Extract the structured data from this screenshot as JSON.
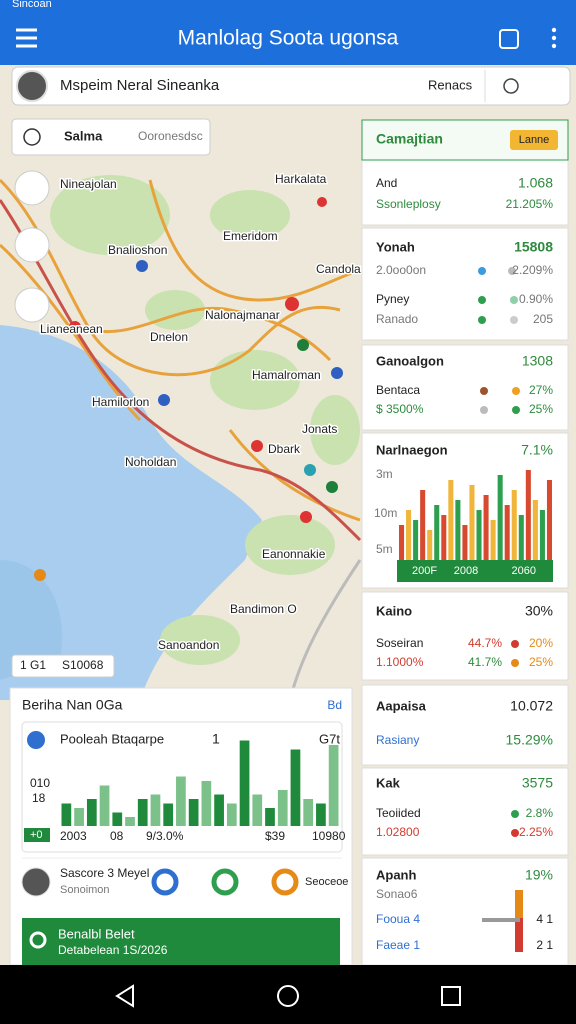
{
  "status_bar": {
    "time": "Sincoan"
  },
  "app_bar": {
    "title": "Manlolag Soota ugonsa"
  },
  "search": {
    "name": "Mspeim Neral Sineanka",
    "button": "Renacs"
  },
  "filter": {
    "label": "Salma",
    "option": "Ooronesdsc"
  },
  "map": {
    "labels": [
      "Nineajolan",
      "Harkalata",
      "Bnalioshon",
      "Emeridom",
      "Candolan",
      "Nalonajmanar",
      "Lianeanean",
      "Dnelon",
      "Hamalroman",
      "Hamilorlon",
      "Jonats",
      "Dbark",
      "Noholdan",
      "Eanonnakie",
      "Bandimon O",
      "Sanoandon"
    ],
    "scale": [
      "1 G1",
      "S10068"
    ]
  },
  "side_cards": [
    {
      "title": "Camajtian",
      "badge": "Lanne",
      "rows": [
        [
          "And",
          "1.068"
        ],
        [
          "Ssonleplosy",
          "21.205%"
        ]
      ]
    },
    {
      "rows": [
        [
          "Yonah",
          "15808"
        ],
        [
          "2.0oo0on",
          "2.209%"
        ],
        [
          "Pyney",
          "0.90%"
        ],
        [
          "Ranado",
          "205"
        ]
      ]
    },
    {
      "rows": [
        [
          "Ganoalgon",
          "1308"
        ],
        [
          "Bentaca",
          "27%"
        ],
        [
          "$ 3500%",
          "25%"
        ]
      ]
    },
    {
      "title": "Narlnaegon",
      "value": "7.1%",
      "y_labels": [
        "3m",
        "10m",
        "5m"
      ],
      "x_labels": [
        "200F",
        "2008",
        "2060"
      ],
      "colors": [
        "#d84a2f",
        "#f0b53a",
        "#2e9e4f"
      ],
      "ylim": [
        0,
        100
      ],
      "bars": [
        35,
        50,
        40,
        70,
        30,
        55,
        45,
        80,
        60,
        35,
        75,
        50,
        65,
        40,
        85,
        55,
        70,
        45,
        90,
        60,
        50,
        80
      ]
    },
    {
      "rows": [
        [
          "Kaino",
          "30%"
        ],
        [
          "Soseiran",
          "44.7%",
          "20%"
        ],
        [
          "1.1000%",
          "41.7%",
          "25%"
        ]
      ]
    },
    {
      "rows": [
        [
          "Aapaisa",
          "10.072"
        ],
        [
          "Rasiany",
          "15.29%"
        ]
      ]
    },
    {
      "rows": [
        [
          "Kak",
          "3575"
        ],
        [
          "Teoiided",
          "2.8%"
        ],
        [
          "1.02800",
          "2.25%"
        ]
      ]
    },
    {
      "rows": [
        [
          "Apanh",
          "19%"
        ],
        [
          "Sonao6"
        ],
        [
          "Fooua 4",
          "4 1"
        ],
        [
          "Faeae 1",
          "2 1"
        ]
      ]
    }
  ],
  "stats_panel": {
    "title": "Beriha Nan 0Ga",
    "link": "Bd",
    "chart_title": "Pooleah Btaqarpe",
    "chart_count": "1",
    "chart_tag": "G7t",
    "y_labels": [
      "010",
      "18",
      "+0"
    ],
    "x_labels": [
      "2003",
      "08",
      "9/3.0%",
      "$39",
      "10980"
    ],
    "ylim": [
      0,
      100
    ],
    "colors": [
      "#1f8a3b",
      "#7cc08a"
    ],
    "bars": [
      25,
      20,
      30,
      45,
      15,
      10,
      30,
      35,
      25,
      55,
      30,
      50,
      35,
      25,
      95,
      35,
      20,
      40,
      85,
      30,
      25,
      90
    ],
    "profile_name": "Sascore 3 Meyel",
    "profile_sub": "Sonoimon",
    "profile_action": "Seoceoe",
    "banner_title": "Benalbl Belet",
    "banner_sub": "Detabelean 1S/2026"
  }
}
